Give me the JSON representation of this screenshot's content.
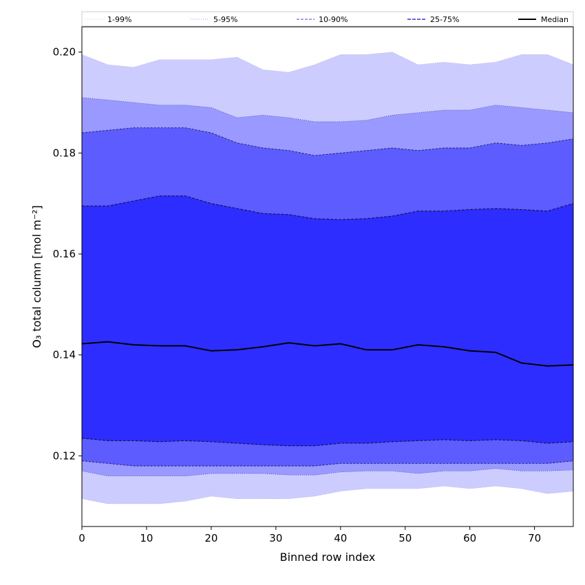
{
  "chart_data": {
    "type": "area",
    "xlabel": "Binned row index",
    "ylabel": "O₃ total column [mol m⁻²]",
    "xlim": [
      0,
      76
    ],
    "ylim": [
      0.106,
      0.205
    ],
    "xticks": [
      0,
      10,
      20,
      30,
      40,
      50,
      60,
      70
    ],
    "yticks": [
      0.12,
      0.14,
      0.16,
      0.18,
      0.2
    ],
    "ytick_labels": [
      "0.12",
      "0.14",
      "0.16",
      "0.18",
      "0.20"
    ],
    "legend": {
      "placement": "top, above plot",
      "entries": [
        {
          "label": "1-99%",
          "color": "#ccccff",
          "style": "dotted"
        },
        {
          "label": "5-95%",
          "color": "#9999ff",
          "style": "dotted"
        },
        {
          "label": "10-90%",
          "color": "#6666ff",
          "style": "dashed"
        },
        {
          "label": "25-75%",
          "color": "#3333cc",
          "style": "dashed"
        },
        {
          "label": "Median",
          "color": "#000000",
          "style": "solid"
        }
      ]
    },
    "colors": {
      "band_1_99": "#ccccff",
      "band_5_95": "#9999ff",
      "band_10_90": "#5c5cff",
      "band_25_75": "#2d2dff",
      "median": "#000000"
    },
    "x": [
      0,
      4,
      8,
      12,
      16,
      20,
      24,
      28,
      32,
      36,
      40,
      44,
      48,
      52,
      56,
      60,
      64,
      68,
      72,
      76
    ],
    "bands": [
      {
        "name": "1-99%",
        "upper": [
          0.1995,
          0.1975,
          0.197,
          0.1985,
          0.1985,
          0.1985,
          0.199,
          0.1965,
          0.196,
          0.1975,
          0.1995,
          0.1995,
          0.2,
          0.1975,
          0.198,
          0.1975,
          0.198,
          0.1995,
          0.1995,
          0.1975
        ],
        "lower": [
          0.1115,
          0.1105,
          0.1105,
          0.1105,
          0.111,
          0.112,
          0.1115,
          0.1115,
          0.1115,
          0.112,
          0.113,
          0.1135,
          0.1135,
          0.1135,
          0.114,
          0.1135,
          0.114,
          0.1135,
          0.1125,
          0.113
        ]
      },
      {
        "name": "5-95%",
        "upper": [
          0.191,
          0.1905,
          0.19,
          0.1895,
          0.1895,
          0.189,
          0.187,
          0.1875,
          0.187,
          0.1862,
          0.1862,
          0.1865,
          0.1875,
          0.188,
          0.1885,
          0.1885,
          0.1895,
          0.189,
          0.1885,
          0.188
        ],
        "lower": [
          0.117,
          0.116,
          0.116,
          0.116,
          0.116,
          0.1165,
          0.1165,
          0.1165,
          0.1162,
          0.1162,
          0.1168,
          0.117,
          0.117,
          0.1165,
          0.117,
          0.117,
          0.1175,
          0.117,
          0.117,
          0.1172
        ]
      },
      {
        "name": "10-90%",
        "upper": [
          0.184,
          0.1845,
          0.185,
          0.185,
          0.185,
          0.184,
          0.182,
          0.181,
          0.1805,
          0.1795,
          0.18,
          0.1805,
          0.181,
          0.1805,
          0.181,
          0.181,
          0.182,
          0.1815,
          0.182,
          0.1828
        ],
        "lower": [
          0.119,
          0.1185,
          0.118,
          0.118,
          0.118,
          0.118,
          0.118,
          0.118,
          0.118,
          0.118,
          0.1185,
          0.1185,
          0.1185,
          0.1185,
          0.1185,
          0.1185,
          0.1185,
          0.1185,
          0.1185,
          0.119
        ]
      },
      {
        "name": "25-75%",
        "upper": [
          0.1695,
          0.1695,
          0.1705,
          0.1715,
          0.1715,
          0.17,
          0.169,
          0.168,
          0.1678,
          0.167,
          0.1668,
          0.167,
          0.1675,
          0.1685,
          0.1685,
          0.1688,
          0.169,
          0.1688,
          0.1685,
          0.17
        ],
        "lower": [
          0.1235,
          0.123,
          0.123,
          0.1228,
          0.123,
          0.1228,
          0.1225,
          0.1222,
          0.122,
          0.122,
          0.1225,
          0.1225,
          0.1228,
          0.123,
          0.1232,
          0.123,
          0.1232,
          0.123,
          0.1225,
          0.1228
        ]
      }
    ],
    "series": [
      {
        "name": "Median",
        "values": [
          0.1422,
          0.1426,
          0.142,
          0.1418,
          0.1418,
          0.1408,
          0.141,
          0.1416,
          0.1424,
          0.1418,
          0.1422,
          0.141,
          0.141,
          0.142,
          0.1416,
          0.1408,
          0.1405,
          0.1384,
          0.1378,
          0.138
        ]
      }
    ]
  }
}
